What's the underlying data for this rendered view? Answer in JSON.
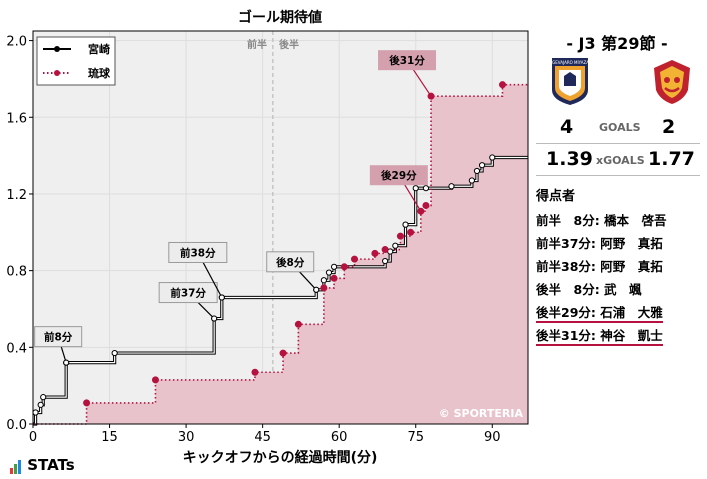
{
  "chart_data": {
    "type": "line",
    "title": "ゴール期待値",
    "xlabel": "キックオフからの経過時間(分)",
    "ylabel": "",
    "xlim": [
      0,
      97
    ],
    "ylim": [
      0,
      2.05
    ],
    "xticks": [
      0,
      15,
      30,
      45,
      60,
      75,
      90
    ],
    "yticks": [
      0.0,
      0.4,
      0.8,
      1.2,
      1.6,
      2.0
    ],
    "ytick_labels": [
      "0.0",
      "0.4",
      "0.8",
      "1.2",
      "1.6",
      "2.0"
    ],
    "grid": true,
    "legend_position": "top-left",
    "half_markers": {
      "minute": 47,
      "first_half": "前半",
      "second_half": "後半"
    },
    "watermark": "© SPORTERIA",
    "series": [
      {
        "name": "宮崎",
        "color": "#000000",
        "style": "solid",
        "points": [
          [
            0,
            0
          ],
          [
            0.5,
            0.06
          ],
          [
            1.5,
            0.1
          ],
          [
            2,
            0.14
          ],
          [
            6.5,
            0.32
          ],
          [
            16,
            0.37
          ],
          [
            35.5,
            0.55
          ],
          [
            37,
            0.66
          ],
          [
            55.5,
            0.7
          ],
          [
            57,
            0.75
          ],
          [
            58,
            0.79
          ],
          [
            59,
            0.82
          ],
          [
            69,
            0.85
          ],
          [
            70,
            0.9
          ],
          [
            71,
            0.93
          ],
          [
            73,
            1.04
          ],
          [
            75,
            1.23
          ],
          [
            77,
            1.23
          ],
          [
            82,
            1.24
          ],
          [
            86,
            1.27
          ],
          [
            87,
            1.32
          ],
          [
            88,
            1.35
          ],
          [
            90,
            1.39
          ],
          [
            97,
            1.39
          ]
        ]
      },
      {
        "name": "琉球",
        "color": "#b5123f",
        "style": "dotted",
        "points": [
          [
            0,
            0
          ],
          [
            10.5,
            0.11
          ],
          [
            24,
            0.23
          ],
          [
            43.5,
            0.27
          ],
          [
            49,
            0.37
          ],
          [
            52,
            0.52
          ],
          [
            57,
            0.71
          ],
          [
            59,
            0.76
          ],
          [
            61,
            0.82
          ],
          [
            63,
            0.86
          ],
          [
            67,
            0.89
          ],
          [
            69,
            0.91
          ],
          [
            72,
            0.98
          ],
          [
            74,
            1.0
          ],
          [
            76,
            1.11
          ],
          [
            77,
            1.14
          ],
          [
            78,
            1.71
          ],
          [
            92,
            1.77
          ],
          [
            97,
            1.77
          ]
        ]
      }
    ],
    "goal_labels": [
      {
        "team": "home",
        "text": "前8分",
        "minute": 6.5,
        "value": 0.32
      },
      {
        "team": "home",
        "text": "前37分",
        "minute": 35.5,
        "value": 0.55
      },
      {
        "team": "home",
        "text": "前38分",
        "minute": 37,
        "value": 0.66
      },
      {
        "team": "home",
        "text": "後8分",
        "minute": 55.5,
        "value": 0.7
      },
      {
        "team": "away",
        "text": "後29分",
        "minute": 76,
        "value": 1.11
      },
      {
        "team": "away",
        "text": "後31分",
        "minute": 78,
        "value": 1.71
      }
    ]
  },
  "match": {
    "round": "- J3 第29節 -",
    "home_goals": "4",
    "away_goals": "2",
    "goals_label": "GOALS",
    "home_xg": "1.39",
    "away_xg": "1.77",
    "xg_label": "xGOALS",
    "home_crest_text": "TEGEVAJARO MIYAZAKI",
    "colors": {
      "home": "#1f2a5a",
      "home_accent": "#f0a22e",
      "away": "#c0212f",
      "away_accent": "#f2b233"
    }
  },
  "scorers": {
    "heading": "得点者",
    "list": [
      {
        "text": "前半　8分: 橋本　啓吾",
        "team": "home"
      },
      {
        "text": "前半37分: 阿野　真拓",
        "team": "home"
      },
      {
        "text": "前半38分: 阿野　真拓",
        "team": "home"
      },
      {
        "text": "後半　8分: 武　颯",
        "team": "home"
      },
      {
        "text": "後半29分: 石浦　大雅",
        "team": "away"
      },
      {
        "text": "後半31分: 神谷　凱士",
        "team": "away"
      }
    ]
  },
  "brand": {
    "name": "STATs",
    "bar_colors": [
      "#e53935",
      "#43a047",
      "#1e88e5"
    ]
  }
}
